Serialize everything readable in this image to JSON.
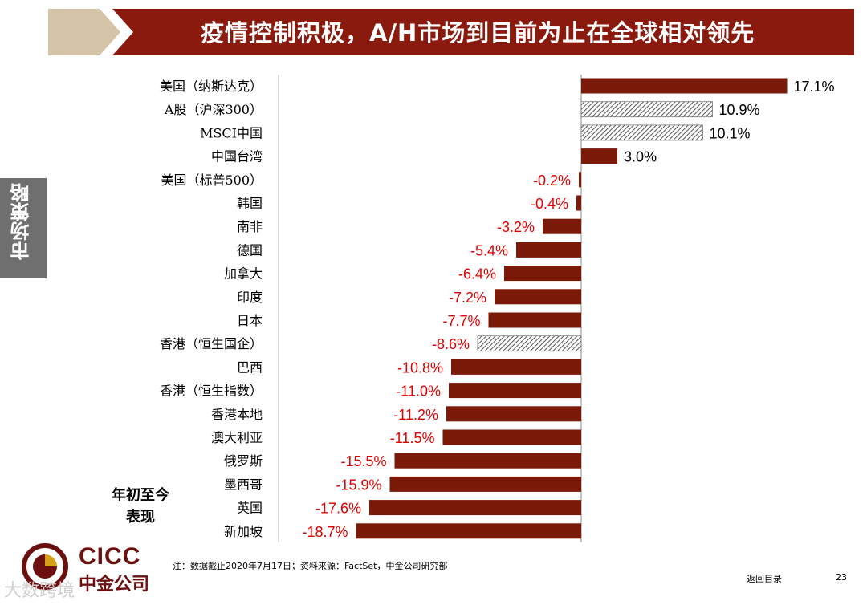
{
  "header": {
    "title": "疫情控制积极，A/H市场到目前为止在全球相对领先",
    "colors": {
      "banner": "#8b1a0e",
      "chevron": "#d6c4a8"
    }
  },
  "side_tab": {
    "label": "市场策略"
  },
  "ytd_label": "年初至今\n表现",
  "footer": {
    "note": "注：数据截止2020年7月17日；资料来源：FactSet，中金公司研究部",
    "back_link": "返回目录",
    "page_number": "23",
    "watermark": "大数跨境"
  },
  "logo": {
    "en": "CICC",
    "cn": "中金公司",
    "icon": "cicc-logo-icon"
  },
  "chart_data": {
    "type": "bar",
    "orientation": "horizontal",
    "categories": [
      "美国（纳斯达克）",
      "A股（沪深300）",
      "MSCI中国",
      "中国台湾",
      "美国（标普500）",
      "韩国",
      "南非",
      "德国",
      "加拿大",
      "印度",
      "日本",
      "香港（恒生国企）",
      "巴西",
      "香港（恒生指数）",
      "香港本地",
      "澳大利亚",
      "俄罗斯",
      "墨西哥",
      "英国",
      "新加坡"
    ],
    "values": [
      17.1,
      10.9,
      10.1,
      3.0,
      -0.2,
      -0.4,
      -3.2,
      -5.4,
      -6.4,
      -7.2,
      -7.7,
      -8.6,
      -10.8,
      -11.0,
      -11.2,
      -11.5,
      -15.5,
      -15.9,
      -17.6,
      -18.7
    ],
    "data_labels": [
      "17.1%",
      "10.9%",
      "10.1%",
      "3.0%",
      "-0.2%",
      "-0.4%",
      "-3.2%",
      "-5.4%",
      "-6.4%",
      "-7.2%",
      "-7.7%",
      "-8.6%",
      "-10.8%",
      "-11.0%",
      "-11.2%",
      "-11.5%",
      "-15.5%",
      "-15.9%",
      "-17.6%",
      "-18.7%"
    ],
    "hatched": [
      false,
      true,
      true,
      false,
      false,
      false,
      false,
      false,
      false,
      false,
      false,
      true,
      false,
      false,
      false,
      false,
      false,
      false,
      false,
      false
    ],
    "unit": "%",
    "colors": {
      "bar": "#7b1a08",
      "positive_label": "#000000",
      "negative_label": "#e00000",
      "hatch": "#555555"
    }
  }
}
